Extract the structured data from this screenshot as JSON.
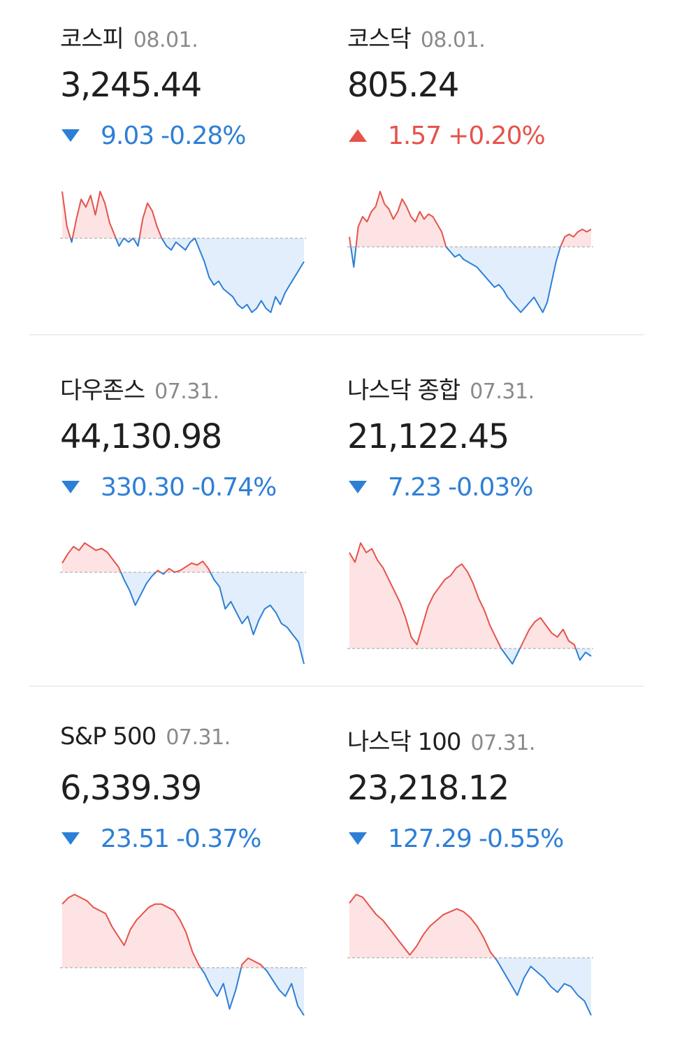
{
  "colors": {
    "up": "#e5534b",
    "up_fill": "#fde3e3",
    "down": "#2d7fd6",
    "down_fill": "#e2eefb",
    "baseline": "#bdbdbd"
  },
  "indices": [
    {
      "name": "코스피",
      "date": "08.01.",
      "value": "3,245.44",
      "direction": "down",
      "change": "9.03",
      "percent": "-0.28%",
      "direction_icon": "triangle-down-icon",
      "chart_data": {
        "type": "area",
        "baseline": 0,
        "values": [
          12,
          3,
          -1,
          5,
          10,
          8,
          11,
          6,
          12,
          9,
          4,
          1,
          -2,
          0,
          -1,
          0,
          -2,
          5,
          9,
          7,
          3,
          0,
          -2,
          -3,
          -1,
          -2,
          -3,
          -1,
          0,
          -3,
          -6,
          -10,
          -12,
          -11,
          -13,
          -14,
          -15,
          -17,
          -18,
          -17,
          -19,
          -18,
          -16,
          -18,
          -19,
          -15,
          -17,
          -14,
          -12,
          -10,
          -8,
          -6
        ]
      }
    },
    {
      "name": "코스닥",
      "date": "08.01.",
      "value": "805.24",
      "direction": "up",
      "change": "1.57",
      "percent": "+0.20%",
      "direction_icon": "triangle-up-icon",
      "chart_data": {
        "type": "area",
        "baseline": 0,
        "values": [
          4,
          -8,
          8,
          12,
          10,
          14,
          16,
          22,
          17,
          15,
          11,
          14,
          19,
          16,
          12,
          10,
          14,
          11,
          13,
          12,
          9,
          6,
          0,
          -2,
          -4,
          -3,
          -5,
          -6,
          -7,
          -8,
          -10,
          -12,
          -14,
          -16,
          -15,
          -17,
          -20,
          -22,
          -24,
          -26,
          -24,
          -22,
          -20,
          -23,
          -26,
          -22,
          -14,
          -6,
          0,
          4,
          5,
          4,
          6,
          7,
          6,
          7
        ]
      }
    },
    {
      "name": "다우존스",
      "date": "07.31.",
      "value": "44,130.98",
      "direction": "down",
      "change": "330.30",
      "percent": "-0.74%",
      "direction_icon": "triangle-down-icon",
      "chart_data": {
        "type": "area",
        "baseline": 0,
        "values": [
          5,
          10,
          14,
          12,
          16,
          14,
          12,
          13,
          11,
          7,
          3,
          -4,
          -10,
          -18,
          -12,
          -6,
          -2,
          1,
          -1,
          2,
          0,
          1,
          3,
          5,
          4,
          6,
          2,
          -4,
          -8,
          -20,
          -16,
          -22,
          -28,
          -24,
          -34,
          -26,
          -20,
          -18,
          -22,
          -28,
          -30,
          -34,
          -38,
          -50
        ]
      }
    },
    {
      "name": "나스닥 종합",
      "date": "07.31.",
      "value": "21,122.45",
      "direction": "down",
      "change": "7.23",
      "percent": "-0.03%",
      "direction_icon": "triangle-down-icon",
      "chart_data": {
        "type": "area",
        "baseline": 0,
        "values": [
          50,
          45,
          55,
          50,
          52,
          46,
          42,
          36,
          30,
          24,
          16,
          6,
          2,
          12,
          22,
          28,
          32,
          36,
          38,
          42,
          44,
          40,
          34,
          26,
          20,
          12,
          6,
          0,
          -4,
          -8,
          -2,
          4,
          10,
          14,
          16,
          12,
          8,
          6,
          10,
          4,
          2,
          -6,
          -2,
          -4
        ]
      }
    },
    {
      "name": "S&P 500",
      "date": "07.31.",
      "value": "6,339.39",
      "direction": "down",
      "change": "23.51",
      "percent": "-0.37%",
      "direction_icon": "triangle-down-icon",
      "chart_data": {
        "type": "area",
        "baseline": 0,
        "values": [
          40,
          44,
          46,
          44,
          42,
          38,
          36,
          34,
          26,
          20,
          14,
          24,
          30,
          34,
          38,
          40,
          40,
          38,
          36,
          30,
          22,
          10,
          2,
          -4,
          -12,
          -18,
          -10,
          -26,
          -14,
          2,
          6,
          4,
          2,
          -2,
          -8,
          -14,
          -18,
          -10,
          -24,
          -30
        ]
      }
    },
    {
      "name": "나스닥 100",
      "date": "07.31.",
      "value": "23,218.12",
      "direction": "down",
      "change": "127.29",
      "percent": "-0.55%",
      "direction_icon": "triangle-down-icon",
      "chart_data": {
        "type": "area",
        "baseline": 0,
        "values": [
          38,
          44,
          42,
          36,
          30,
          26,
          20,
          14,
          8,
          2,
          8,
          16,
          22,
          26,
          30,
          32,
          34,
          32,
          28,
          22,
          14,
          4,
          -2,
          -10,
          -18,
          -26,
          -14,
          -6,
          -10,
          -14,
          -20,
          -24,
          -18,
          -20,
          -26,
          -30,
          -40
        ]
      }
    }
  ]
}
